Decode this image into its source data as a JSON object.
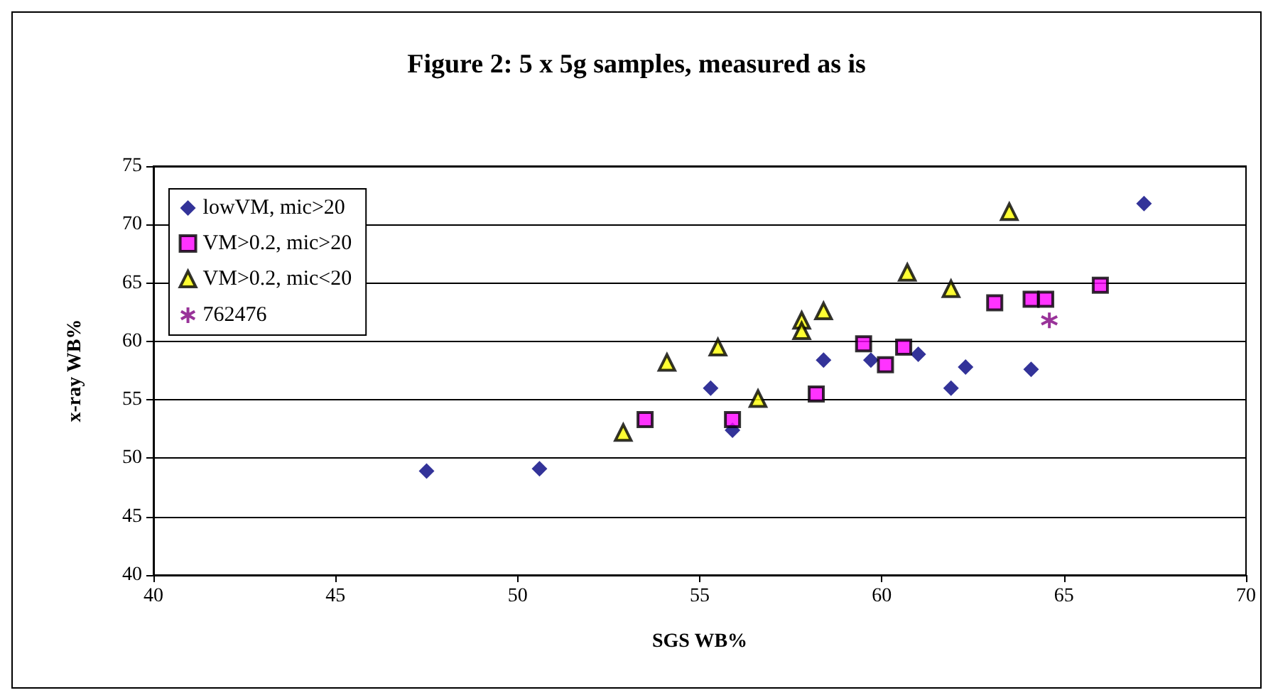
{
  "chart_data": {
    "type": "scatter",
    "title": "Figure 2: 5 x 5g samples, measured as is",
    "xlabel": "SGS WB%",
    "ylabel": "x-ray WB%",
    "xlim": [
      40,
      70
    ],
    "xticks": [
      40,
      45,
      50,
      55,
      60,
      65,
      70
    ],
    "ylim": [
      40,
      75
    ],
    "yticks": [
      40,
      45,
      50,
      55,
      60,
      65,
      70,
      75
    ],
    "grid": "y",
    "legend": "top left",
    "series": [
      {
        "name": "lowVM, mic>20",
        "color": "#000080",
        "marker": "diamond",
        "x": [
          47.5,
          50.6,
          55.3,
          55.9,
          58.4,
          59.7,
          61.0,
          61.9,
          62.3,
          64.1,
          67.2
        ],
        "values": [
          48.9,
          49.1,
          56.0,
          52.4,
          58.4,
          58.4,
          58.9,
          56.0,
          57.8,
          57.6,
          71.8
        ]
      },
      {
        "name": "VM>0.2, mic>20",
        "color": "#ff00ff",
        "marker": "square",
        "x": [
          53.5,
          55.9,
          58.2,
          59.5,
          60.1,
          60.6,
          63.1,
          64.1,
          64.5,
          66.0
        ],
        "values": [
          53.3,
          53.3,
          55.5,
          59.8,
          58.0,
          59.5,
          63.3,
          63.6,
          63.6,
          64.8
        ]
      },
      {
        "name": "VM>0.2, mic<20",
        "color": "#ffff00",
        "marker": "triangle",
        "x": [
          52.9,
          54.1,
          55.5,
          56.6,
          57.8,
          57.8,
          58.4,
          60.7,
          61.9,
          63.5
        ],
        "values": [
          52.2,
          58.2,
          59.5,
          55.1,
          61.8,
          60.9,
          62.6,
          65.9,
          64.5,
          71.1
        ]
      },
      {
        "name": "762476",
        "color": "#800080",
        "marker": "cross",
        "x": [
          64.6
        ],
        "values": [
          61.8
        ]
      }
    ]
  }
}
